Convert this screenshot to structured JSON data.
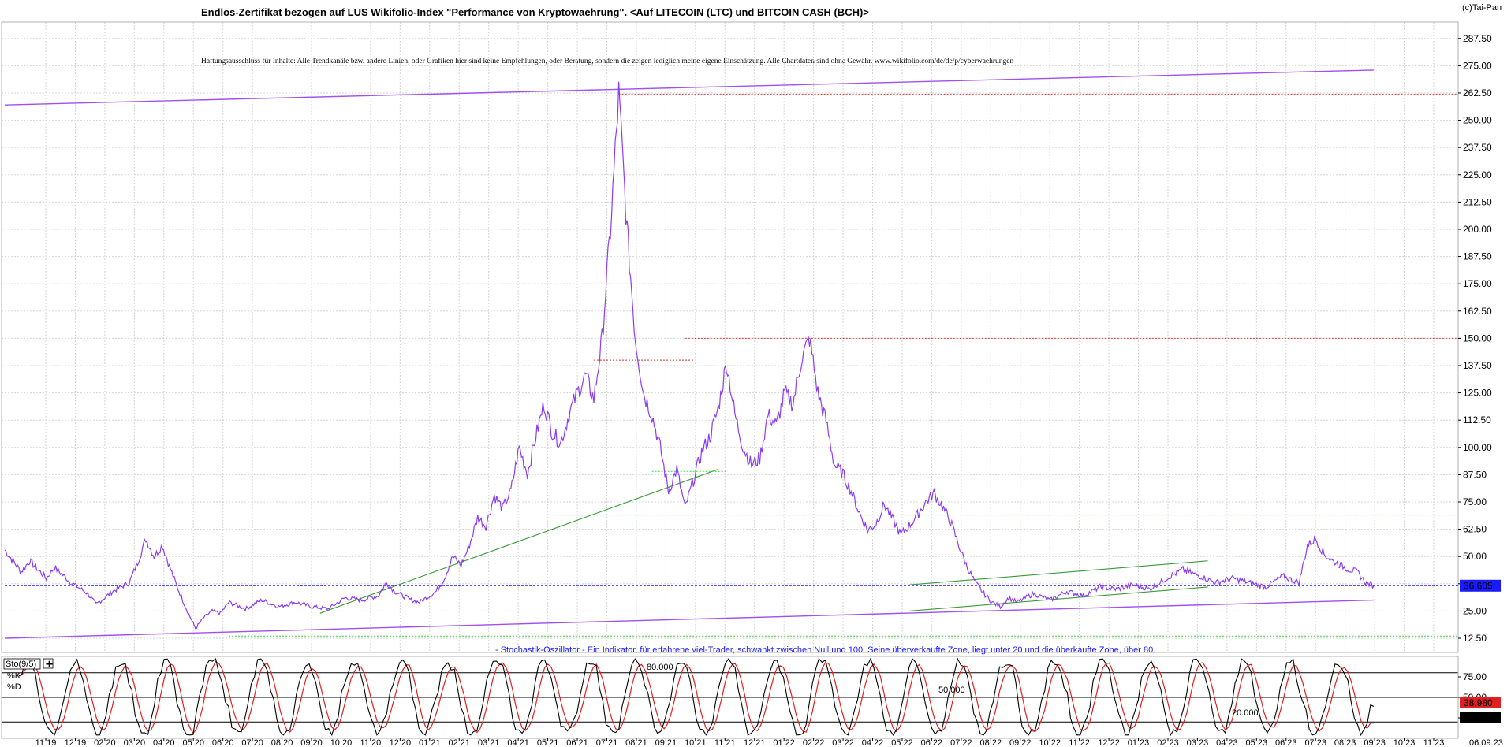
{
  "header": {
    "title": "Endlos-Zertifikat bezogen auf LUS Wikifolio-Index \"Performance von Kryptowaehrung\". <Auf LITECOIN (LTC) und BITCOIN CASH (BCH)>",
    "disclaimer": "Haftungsausschluss für Inhalte: Alle Trendkanäle bzw. andere Linien, oder Grafiken hier sind keine Empfehlungen, oder Beratung, sondern die zeigen lediglich meine eigene Einschätzung. Alle Chartdaten sind ohne Gewähr.  www.wikifolio.com/de/de/p/cyberwaehrungen",
    "copyright": "(c)Tai-Pan"
  },
  "colors": {
    "price": "#8b3cf5",
    "trend": "#a050f0",
    "support": "#3a9a3a",
    "resistance": "#e23030",
    "level_green": "#38d838",
    "current": "#1a1aff",
    "k_line": "#000000",
    "d_line": "#e02020"
  },
  "chart_data": [
    {
      "type": "line",
      "title": "Endlos-Zertifikat bezogen auf LUS Wikifolio-Index \"Performance von Kryptowaehrung\". <Auf LITECOIN (LTC) und BITCOIN CASH (BCH)>",
      "y_ticks": [
        "287.50",
        "275.00",
        "262.50",
        "250.00",
        "237.50",
        "225.00",
        "212.50",
        "200.00",
        "187.50",
        "175.00",
        "162.50",
        "150.00",
        "137.50",
        "125.00",
        "112.50",
        "100.00",
        "87.50",
        "75.00",
        "62.50",
        "50.00",
        "37.50",
        "25.00",
        "12.50"
      ],
      "y_tick_values": [
        287.5,
        275,
        262.5,
        250,
        237.5,
        225,
        212.5,
        200,
        187.5,
        175,
        162.5,
        150,
        137.5,
        125,
        112.5,
        100,
        87.5,
        75,
        62.5,
        50,
        37.5,
        25,
        12.5
      ],
      "ylim": [
        6,
        295
      ],
      "x_ticks": [
        "11 19",
        "12 19",
        "02 20",
        "03 20",
        "04 20",
        "05 20",
        "06 20",
        "07 20",
        "08 20",
        "09 20",
        "10 20",
        "11 20",
        "12 20",
        "01 21",
        "02 21",
        "03 21",
        "04 21",
        "05 21",
        "06 21",
        "07 21",
        "08 21",
        "09 21",
        "10 21",
        "11 21",
        "12 21",
        "01 22",
        "02 22",
        "03 22",
        "04 22",
        "05 22",
        "06 22",
        "07 22",
        "08 22",
        "09 22",
        "10 22",
        "11 22",
        "12 22",
        "01 23",
        "02 23",
        "03 23",
        "04 23",
        "05 23",
        "06 23",
        "07 23",
        "08 23",
        "09 23",
        "10 23",
        "11 23"
      ],
      "last_date": "06.09.23",
      "current_value_label": "36.605",
      "current_value": 36.605,
      "series": [
        {
          "values": [
            [
              0,
              53
            ],
            [
              2,
              43
            ],
            [
              3,
              48
            ],
            [
              5,
              40
            ],
            [
              6,
              45
            ],
            [
              8,
              38
            ],
            [
              10,
              33
            ],
            [
              11,
              28
            ],
            [
              13,
              34
            ],
            [
              15,
              38
            ],
            [
              16,
              47
            ],
            [
              17,
              58
            ],
            [
              18,
              50
            ],
            [
              19,
              55
            ],
            [
              20,
              44
            ],
            [
              21,
              34
            ],
            [
              22,
              25
            ],
            [
              23,
              17
            ],
            [
              24,
              22
            ],
            [
              25,
              25
            ],
            [
              26,
              24
            ],
            [
              27,
              29
            ],
            [
              29,
              26
            ],
            [
              31,
              30
            ],
            [
              33,
              27
            ],
            [
              35,
              29
            ],
            [
              37,
              27
            ],
            [
              39,
              26
            ],
            [
              41,
              31
            ],
            [
              43,
              30
            ],
            [
              45,
              32
            ],
            [
              46,
              38
            ],
            [
              47,
              34
            ],
            [
              48,
              32
            ],
            [
              49,
              30
            ],
            [
              50,
              29
            ],
            [
              52,
              34
            ],
            [
              53,
              40
            ],
            [
              54,
              50
            ],
            [
              55,
              46
            ],
            [
              56,
              55
            ],
            [
              57,
              68
            ],
            [
              58,
              64
            ],
            [
              59,
              78
            ],
            [
              60,
              72
            ],
            [
              61,
              80
            ],
            [
              62,
              100
            ],
            [
              63,
              88
            ],
            [
              64,
              105
            ],
            [
              65,
              120
            ],
            [
              66,
              107
            ],
            [
              67,
              102
            ],
            [
              68,
              115
            ],
            [
              69,
              125
            ],
            [
              70,
              133
            ],
            [
              71,
              122
            ],
            [
              72,
              150
            ],
            [
              73,
              200
            ],
            [
              74,
              262
            ],
            [
              75,
              200
            ],
            [
              76,
              150
            ],
            [
              77,
              125
            ],
            [
              78,
              115
            ],
            [
              79,
              100
            ],
            [
              80,
              80
            ],
            [
              81,
              90
            ],
            [
              82,
              72
            ],
            [
              83,
              85
            ],
            [
              84,
              98
            ],
            [
              85,
              105
            ],
            [
              86,
              118
            ],
            [
              87,
              139
            ],
            [
              88,
              115
            ],
            [
              89,
              100
            ],
            [
              90,
              92
            ],
            [
              91,
              95
            ],
            [
              92,
              115
            ],
            [
              93,
              110
            ],
            [
              94,
              125
            ],
            [
              95,
              120
            ],
            [
              96,
              140
            ],
            [
              97,
              150
            ],
            [
              98,
              125
            ],
            [
              99,
              112
            ],
            [
              100,
              92
            ],
            [
              101,
              88
            ],
            [
              102,
              80
            ],
            [
              103,
              70
            ],
            [
              104,
              62
            ],
            [
              105,
              65
            ],
            [
              106,
              74
            ],
            [
              107,
              67
            ],
            [
              108,
              60
            ],
            [
              109,
              64
            ],
            [
              110,
              69
            ],
            [
              111,
              75
            ],
            [
              112,
              79
            ],
            [
              113,
              73
            ],
            [
              114,
              66
            ],
            [
              115,
              55
            ],
            [
              116,
              45
            ],
            [
              117,
              38
            ],
            [
              118,
              33
            ],
            [
              119,
              29
            ],
            [
              120,
              27
            ],
            [
              121,
              31
            ],
            [
              122,
              29
            ],
            [
              124,
              33
            ],
            [
              126,
              30
            ],
            [
              128,
              34
            ],
            [
              130,
              32
            ],
            [
              132,
              36
            ],
            [
              134,
              35
            ],
            [
              136,
              37
            ],
            [
              138,
              35
            ],
            [
              140,
              40
            ],
            [
              142,
              44
            ],
            [
              144,
              41
            ],
            [
              146,
              38
            ],
            [
              148,
              40
            ],
            [
              150,
              38
            ],
            [
              152,
              36
            ],
            [
              154,
              41
            ],
            [
              156,
              38
            ],
            [
              157,
              55
            ],
            [
              158,
              58
            ],
            [
              159,
              51
            ],
            [
              160,
              48
            ],
            [
              161,
              46
            ],
            [
              162,
              44
            ],
            [
              163,
              43
            ],
            [
              164,
              38
            ],
            [
              165,
              36.6
            ]
          ],
          "x_range": [
            0,
            165
          ]
        }
      ],
      "annotations": [
        {
          "kind": "trendline",
          "color": "purple",
          "from": [
            0,
            257
          ],
          "to": [
            165,
            273
          ]
        },
        {
          "kind": "trendline",
          "color": "purple",
          "from": [
            0,
            12.5
          ],
          "to": [
            165,
            30
          ]
        },
        {
          "kind": "trendline",
          "color": "green",
          "from": [
            38,
            24
          ],
          "to": [
            86,
            90
          ]
        },
        {
          "kind": "trendline",
          "color": "green",
          "from": [
            109,
            37
          ],
          "to": [
            145,
            48
          ]
        },
        {
          "kind": "trendline",
          "color": "green",
          "from": [
            109,
            25
          ],
          "to": [
            145,
            36
          ]
        },
        {
          "kind": "level",
          "color": "red",
          "value": 262,
          "from": 74,
          "to": 165
        },
        {
          "kind": "level",
          "color": "red",
          "value": 150,
          "from": 82,
          "to": 165
        },
        {
          "kind": "level",
          "color": "red",
          "value": 140,
          "from": 71,
          "to": 83
        },
        {
          "kind": "level",
          "color": "green",
          "value": 69,
          "from": 66,
          "to": 165
        },
        {
          "kind": "level",
          "color": "green",
          "value": 89,
          "from": 78,
          "to": 87
        },
        {
          "kind": "level",
          "color": "green",
          "value": 13.5,
          "from": 27,
          "to": 165
        },
        {
          "kind": "level",
          "color": "blue",
          "value": 36.605,
          "from": 0,
          "to": 165
        }
      ]
    },
    {
      "type": "line",
      "title": "Sto(9/5)",
      "legend": [
        "%K",
        "%D"
      ],
      "note": "- Stochastik-Oszillator - Ein Indikator, für erfahrene viel-Trader, schwankt zwischen Null und 100. Seine überverkaufte Zone, liegt unter 20 und die überkaufte Zone, über 80.",
      "y_ticks": [
        "75.00",
        "50.00",
        "25.00"
      ],
      "y_tick_values": [
        75,
        50,
        25
      ],
      "ylim": [
        0,
        100
      ],
      "levels": [
        80,
        50,
        20
      ],
      "level_labels": [
        "80.000",
        "50.000",
        "20.000"
      ],
      "current_labels": [
        "38.980",
        "18.652"
      ],
      "current_k": 38.98,
      "current_d": 18.652
    }
  ]
}
